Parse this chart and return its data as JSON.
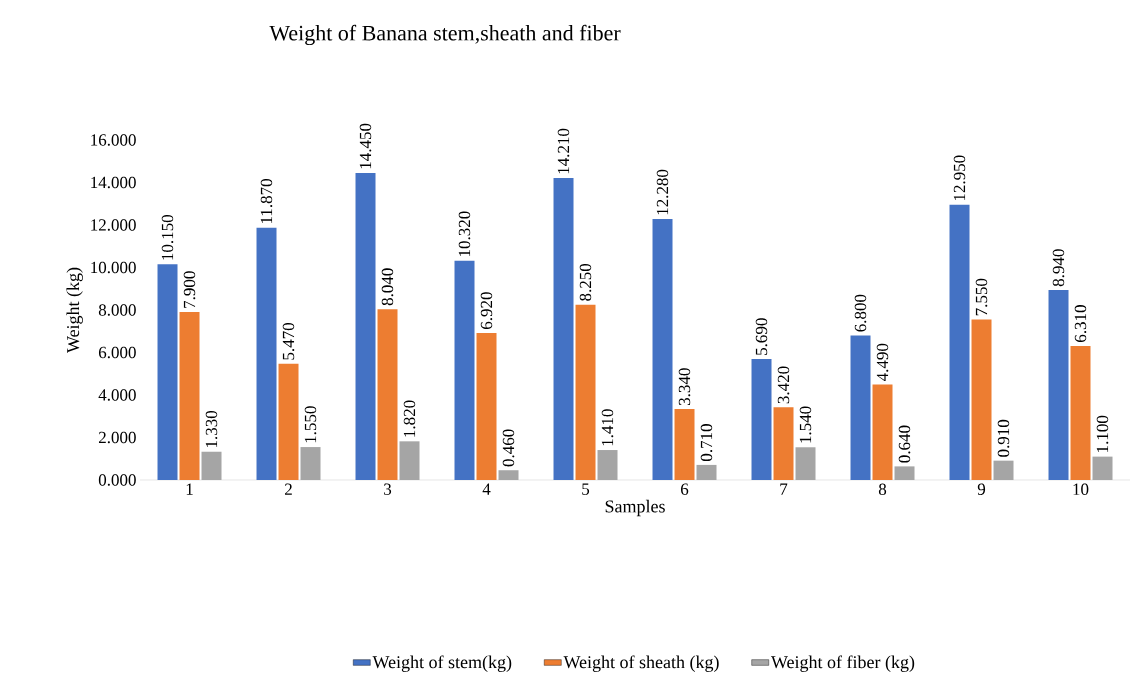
{
  "chart_data": {
    "type": "bar",
    "title": "Weight of Banana stem,sheath and fiber",
    "xlabel": "Samples",
    "ylabel": "Weight (kg)",
    "categories": [
      "1",
      "2",
      "3",
      "4",
      "5",
      "6",
      "7",
      "8",
      "9",
      "10"
    ],
    "series": [
      {
        "name": "Weight of stem(kg)",
        "color": "#4472c4",
        "values": [
          10.15,
          11.87,
          14.45,
          10.32,
          14.21,
          12.28,
          5.69,
          6.8,
          12.95,
          8.94
        ],
        "value_labels": [
          "10.150",
          "11.870",
          "14.450",
          "10.320",
          "14.210",
          "12.280",
          "5.690",
          "6.800",
          "12.950",
          "8.940"
        ]
      },
      {
        "name": "Weight of sheath (kg)",
        "color": "#ed7d31",
        "values": [
          7.9,
          5.47,
          8.04,
          6.92,
          8.25,
          3.34,
          3.42,
          4.49,
          7.55,
          6.31
        ],
        "value_labels": [
          "7.900",
          "5.470",
          "8.040",
          "6.920",
          "8.250",
          "3.340",
          "3.420",
          "4.490",
          "7.550",
          "6.310"
        ]
      },
      {
        "name": "Weight of fiber (kg)",
        "color": "#a5a5a5",
        "values": [
          1.33,
          1.55,
          1.82,
          0.46,
          1.41,
          0.71,
          1.54,
          0.64,
          0.91,
          1.1
        ],
        "value_labels": [
          "1.330",
          "1.550",
          "1.820",
          "0.460",
          "1.410",
          "0.710",
          "1.540",
          "0.640",
          "0.910",
          "1.100"
        ]
      }
    ],
    "ylim": [
      0,
      16
    ],
    "yticks": [
      {
        "value": 0,
        "label": "0.000"
      },
      {
        "value": 2,
        "label": "2.000"
      },
      {
        "value": 4,
        "label": "4.000"
      },
      {
        "value": 6,
        "label": "6.000"
      },
      {
        "value": 8,
        "label": "8.000"
      },
      {
        "value": 10,
        "label": "10.000"
      },
      {
        "value": 12,
        "label": "12.000"
      },
      {
        "value": 14,
        "label": "14.000"
      },
      {
        "value": 16,
        "label": "16.000"
      }
    ],
    "grid": false,
    "legend": "bottom"
  }
}
